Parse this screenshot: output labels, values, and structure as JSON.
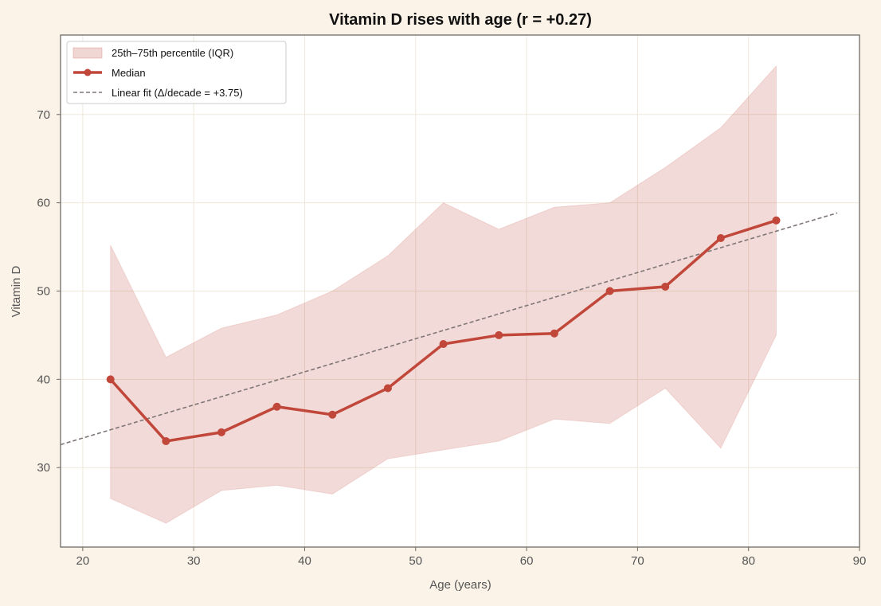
{
  "chart_data": {
    "type": "line",
    "title": "Vitamin D rises with age (r = +0.27)",
    "xlabel": "Age (years)",
    "ylabel": "Vitamin D",
    "xlim": [
      18,
      90
    ],
    "ylim": [
      21,
      79
    ],
    "xticks": [
      20,
      30,
      40,
      50,
      60,
      70,
      80,
      90
    ],
    "yticks": [
      30,
      40,
      50,
      60,
      70
    ],
    "grid": true,
    "legend_position": "top-left",
    "x": [
      22.5,
      27.5,
      32.5,
      37.5,
      42.5,
      47.5,
      52.5,
      57.5,
      62.5,
      67.5,
      72.5,
      77.5,
      82.5
    ],
    "series": [
      {
        "name": "Median",
        "values": [
          40.0,
          33.0,
          34.0,
          36.9,
          36.0,
          39.0,
          44.0,
          45.0,
          45.2,
          50.0,
          50.5,
          56.0,
          58.0
        ],
        "color": "#c0473a"
      }
    ],
    "band": {
      "name": "25th–75th percentile (IQR)",
      "lower": [
        26.5,
        23.7,
        27.4,
        28.0,
        27.0,
        31.0,
        32.0,
        33.0,
        35.5,
        35.0,
        39.0,
        32.2,
        45.0
      ],
      "upper": [
        55.2,
        42.5,
        45.8,
        47.3,
        50.0,
        54.0,
        60.0,
        57.0,
        59.5,
        60.0,
        64.0,
        68.5,
        75.5
      ],
      "color": "#c0473a"
    },
    "fit": {
      "name": "Linear fit (Δ/decade = +3.75)",
      "x": [
        18,
        88
      ],
      "y": [
        32.6,
        58.85
      ],
      "color": "#7f7676"
    }
  }
}
